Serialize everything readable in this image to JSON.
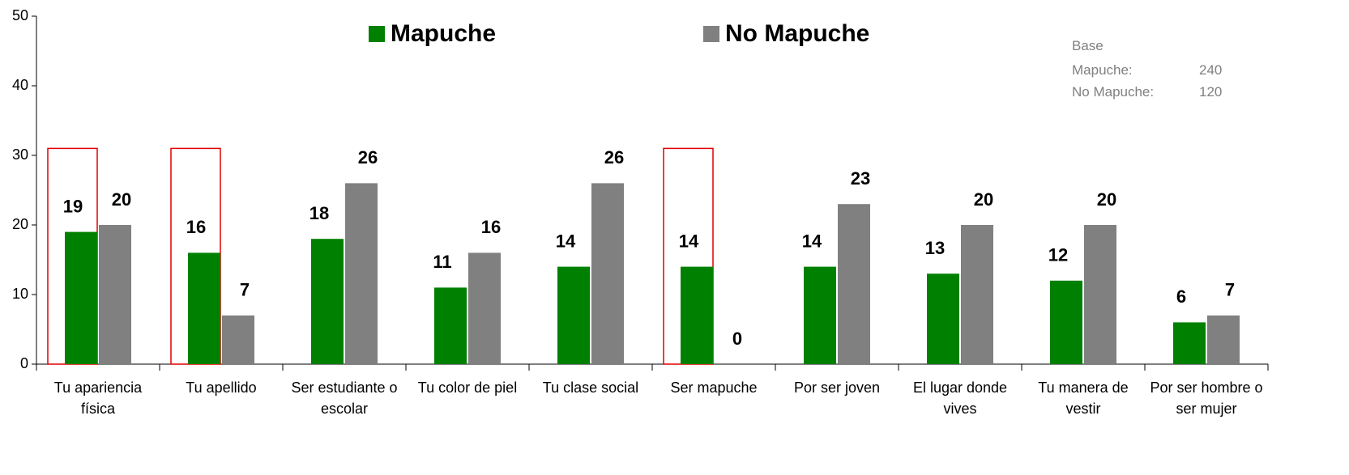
{
  "chart_data": {
    "type": "bar",
    "categories": [
      "Tu apariencia física",
      "Tu apellido",
      "Ser estudiante o escolar",
      "Tu color de piel",
      "Tu clase social",
      "Ser mapuche",
      "Por ser joven",
      "El lugar donde vives",
      "Tu manera de vestir",
      "Por ser hombre o ser mujer"
    ],
    "series": [
      {
        "name": "Mapuche",
        "color": "#008000",
        "values": [
          19,
          16,
          18,
          11,
          14,
          14,
          14,
          13,
          12,
          6
        ]
      },
      {
        "name": "No Mapuche",
        "color": "#808080",
        "values": [
          20,
          7,
          26,
          16,
          26,
          0,
          23,
          20,
          20,
          7
        ]
      }
    ],
    "ylim": [
      0,
      50
    ],
    "yticks": [
      0,
      10,
      20,
      30,
      40,
      50
    ],
    "highlight": [
      0,
      1,
      5
    ],
    "highlight_color": "#e00000",
    "base": {
      "title": "Base",
      "rows": [
        {
          "label": "Mapuche:",
          "value": 240
        },
        {
          "label": "No Mapuche:",
          "value": 120
        }
      ]
    }
  }
}
